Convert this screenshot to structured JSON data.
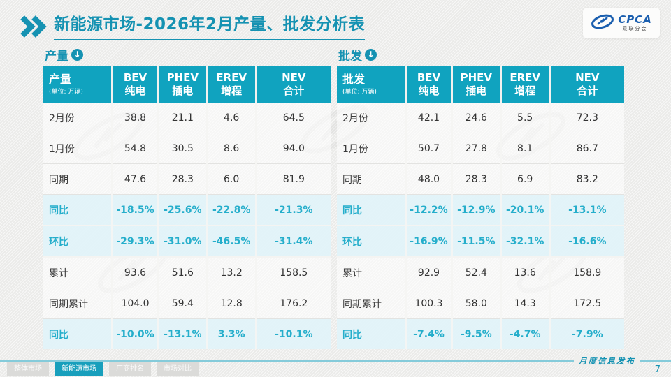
{
  "slide": {
    "title": "新能源市场-2026年2月产量、批发分析表",
    "caption": "月度信息发布",
    "page_number": "7"
  },
  "logo": {
    "text": "CPCA",
    "subtext": "乘联分会"
  },
  "icons": {
    "title_chevron": "double-chevron-right-icon",
    "section_arrow_glyph": "↓",
    "logo_mark": "cpca-swoosh-icon"
  },
  "colors": {
    "accent_teal": "#10A3BF",
    "title_teal": "#1592B2",
    "highlight_bg": "#E2F3F9",
    "highlight_text": "#25AECB",
    "logo_blue": "#1B5FAF"
  },
  "tables": [
    {
      "id": "production",
      "title": "产量",
      "unit": "(单位: 万辆)",
      "columns": [
        [
          "BEV",
          "纯电"
        ],
        [
          "PHEV",
          "插电"
        ],
        [
          "EREV",
          "增程"
        ],
        [
          "NEV",
          "合计"
        ]
      ],
      "rows": [
        {
          "label": "2月份",
          "values": [
            "38.8",
            "21.1",
            "4.6",
            "64.5"
          ],
          "highlight": false
        },
        {
          "label": "1月份",
          "values": [
            "54.8",
            "30.5",
            "8.6",
            "94.0"
          ],
          "highlight": false
        },
        {
          "label": "同期",
          "values": [
            "47.6",
            "28.3",
            "6.0",
            "81.9"
          ],
          "highlight": false
        },
        {
          "label": "同比",
          "values": [
            "-18.5%",
            "-25.6%",
            "-22.8%",
            "-21.3%"
          ],
          "highlight": true
        },
        {
          "label": "环比",
          "values": [
            "-29.3%",
            "-31.0%",
            "-46.5%",
            "-31.4%"
          ],
          "highlight": true
        },
        {
          "label": "累计",
          "values": [
            "93.6",
            "51.6",
            "13.2",
            "158.5"
          ],
          "highlight": false
        },
        {
          "label": "同期累计",
          "values": [
            "104.0",
            "59.4",
            "12.8",
            "176.2"
          ],
          "highlight": false
        },
        {
          "label": "同比",
          "values": [
            "-10.0%",
            "-13.1%",
            "3.3%",
            "-10.1%"
          ],
          "highlight": true
        }
      ]
    },
    {
      "id": "wholesale",
      "title": "批发",
      "unit": "(单位: 万辆)",
      "columns": [
        [
          "BEV",
          "纯电"
        ],
        [
          "PHEV",
          "插电"
        ],
        [
          "EREV",
          "增程"
        ],
        [
          "NEV",
          "合计"
        ]
      ],
      "rows": [
        {
          "label": "2月份",
          "values": [
            "42.1",
            "24.6",
            "5.5",
            "72.3"
          ],
          "highlight": false
        },
        {
          "label": "1月份",
          "values": [
            "50.7",
            "27.8",
            "8.1",
            "86.7"
          ],
          "highlight": false
        },
        {
          "label": "同期",
          "values": [
            "48.0",
            "28.3",
            "6.9",
            "83.2"
          ],
          "highlight": false
        },
        {
          "label": "同比",
          "values": [
            "-12.2%",
            "-12.9%",
            "-20.1%",
            "-13.1%"
          ],
          "highlight": true
        },
        {
          "label": "环比",
          "values": [
            "-16.9%",
            "-11.5%",
            "-32.1%",
            "-16.6%"
          ],
          "highlight": true
        },
        {
          "label": "累计",
          "values": [
            "92.9",
            "52.4",
            "13.6",
            "158.9"
          ],
          "highlight": false
        },
        {
          "label": "同期累计",
          "values": [
            "100.3",
            "58.0",
            "14.3",
            "172.5"
          ],
          "highlight": false
        },
        {
          "label": "同比",
          "values": [
            "-7.4%",
            "-9.5%",
            "-4.7%",
            "-7.9%"
          ],
          "highlight": true
        }
      ]
    }
  ],
  "footer": {
    "tabs": [
      {
        "label": "整体市场",
        "active": false
      },
      {
        "label": "新能源市场",
        "active": true
      },
      {
        "label": "厂商排名",
        "active": false
      },
      {
        "label": "市场对比",
        "active": false
      }
    ]
  }
}
